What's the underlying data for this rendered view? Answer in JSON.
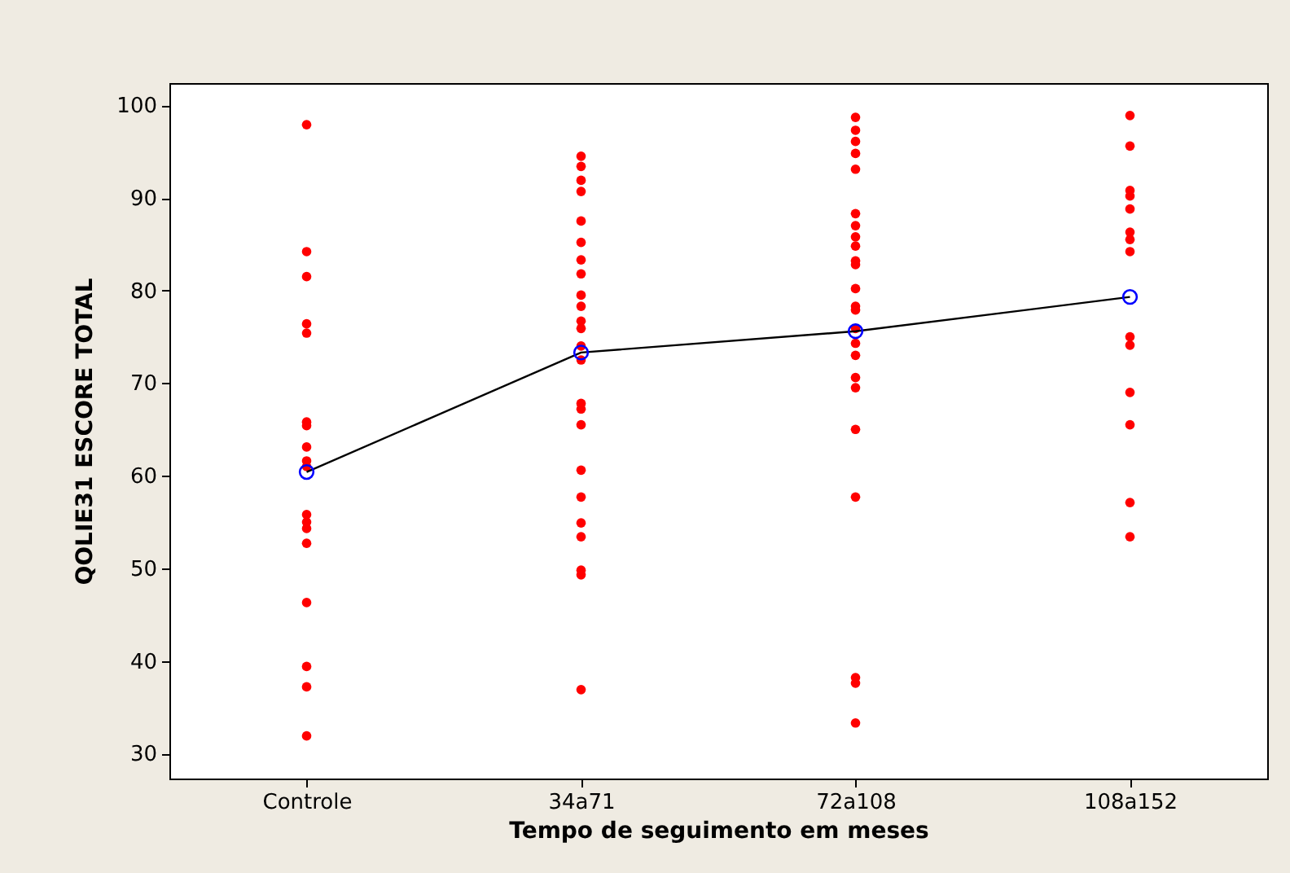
{
  "chart_data": {
    "type": "scatter",
    "xlabel": "Tempo de seguimento em meses",
    "ylabel": "QOLIE31 ESCORE TOTAL",
    "categories": [
      "Controle",
      "34a71",
      "72a108",
      "108a152"
    ],
    "ylim": [
      27.3,
      102.4
    ],
    "yticks": [
      30,
      40,
      50,
      60,
      70,
      80,
      90,
      100
    ],
    "grid": false,
    "series": [
      {
        "marker": "circle",
        "color": "#ff0000",
        "x": [
          "Controle",
          "Controle",
          "Controle",
          "Controle",
          "Controle",
          "Controle",
          "Controle",
          "Controle",
          "Controle",
          "Controle",
          "Controle",
          "Controle",
          "Controle",
          "Controle",
          "Controle",
          "Controle",
          "Controle",
          "Controle",
          "34a71",
          "34a71",
          "34a71",
          "34a71",
          "34a71",
          "34a71",
          "34a71",
          "34a71",
          "34a71",
          "34a71",
          "34a71",
          "34a71",
          "34a71",
          "34a71",
          "34a71",
          "34a71",
          "34a71",
          "34a71",
          "34a71",
          "34a71",
          "34a71",
          "34a71",
          "34a71",
          "34a71",
          "72a108",
          "72a108",
          "72a108",
          "72a108",
          "72a108",
          "72a108",
          "72a108",
          "72a108",
          "72a108",
          "72a108",
          "72a108",
          "72a108",
          "72a108",
          "72a108",
          "72a108",
          "72a108",
          "72a108",
          "72a108",
          "72a108",
          "72a108",
          "72a108",
          "72a108",
          "72a108",
          "72a108",
          "108a152",
          "108a152",
          "108a152",
          "108a152",
          "108a152",
          "108a152",
          "108a152",
          "108a152",
          "108a152",
          "108a152",
          "108a152",
          "108a152",
          "108a152",
          "108a152"
        ],
        "values": [
          97.9,
          84.2,
          81.5,
          76.4,
          75.4,
          65.8,
          65.4,
          63.1,
          61.6,
          61.0,
          55.8,
          55.0,
          54.3,
          52.7,
          46.3,
          39.4,
          37.2,
          31.9,
          94.5,
          93.4,
          91.9,
          90.7,
          87.5,
          85.2,
          83.3,
          81.8,
          79.5,
          78.3,
          76.7,
          75.9,
          74.0,
          72.5,
          67.8,
          67.2,
          65.5,
          60.6,
          57.7,
          54.9,
          53.4,
          49.8,
          49.3,
          36.9,
          98.7,
          97.3,
          96.1,
          94.8,
          93.1,
          88.3,
          87.0,
          85.8,
          84.8,
          83.2,
          82.8,
          80.2,
          78.3,
          77.9,
          75.9,
          74.3,
          73.0,
          70.6,
          69.5,
          65.0,
          57.7,
          38.2,
          37.6,
          33.3,
          98.9,
          95.6,
          90.8,
          90.2,
          88.8,
          86.3,
          85.5,
          84.2,
          75.0,
          74.1,
          69.0,
          65.5,
          57.1,
          53.4
        ]
      },
      {
        "type": "line",
        "marker": "none",
        "color": "#000000",
        "values": [
          60.4,
          73.3,
          75.6,
          79.3
        ]
      },
      {
        "type": "scatter",
        "marker": "circle",
        "color": "#0000ff",
        "values": [
          60.4,
          73.3,
          75.6,
          79.3
        ]
      }
    ]
  }
}
